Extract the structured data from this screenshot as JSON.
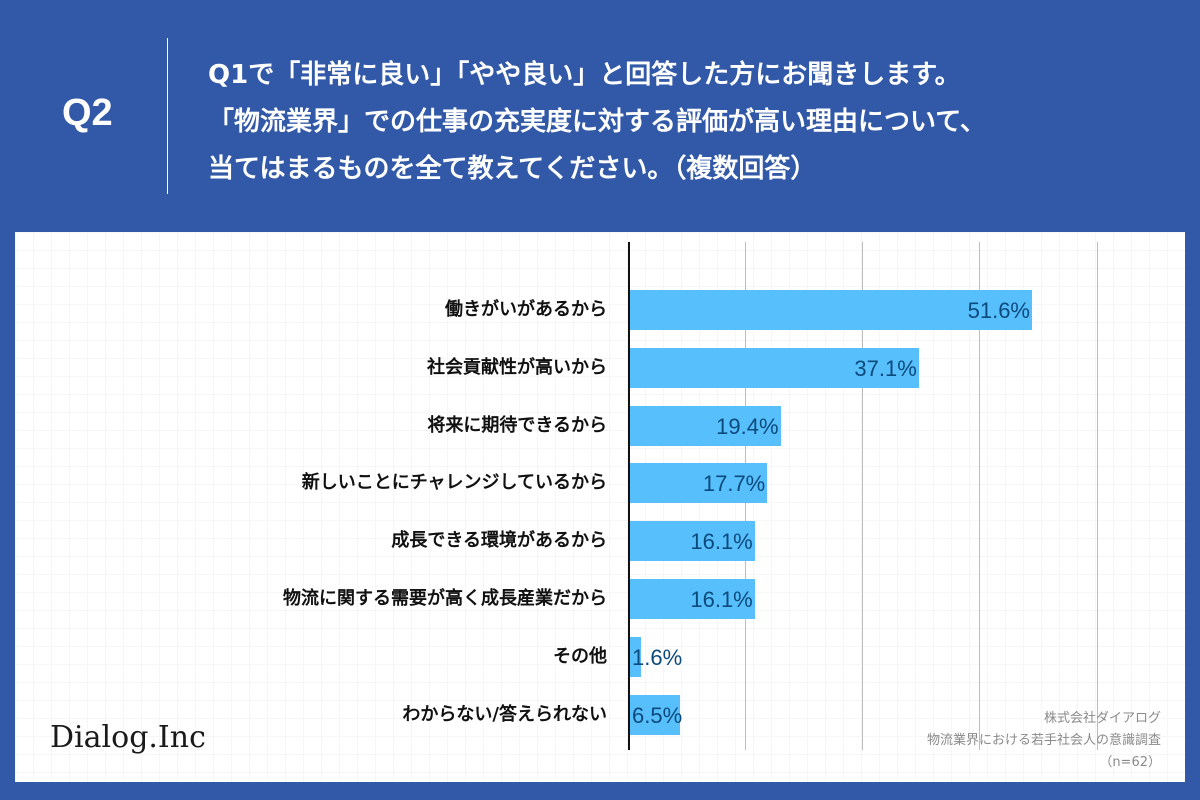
{
  "header": {
    "question_label": "Q2",
    "question_lines": [
      "Q1で「非常に良い」「やや良い」と回答した方にお聞きします。",
      "「物流業界」での仕事の充実度に対する評価が高い理由について、",
      "当てはまるものを全て教えてください。（複数回答）"
    ]
  },
  "colors": {
    "background": "#3258a8",
    "bar": "#56bffc",
    "value_text": "#0d4a7c",
    "panel": "#ffffff"
  },
  "footer": {
    "logo": "Dialog.Inc",
    "source_lines": [
      "株式会社ダイアログ",
      "物流業界における若手社会人の意識調査",
      "（n=62）"
    ]
  },
  "chart_data": {
    "type": "bar",
    "orientation": "horizontal",
    "title": "Q1で「非常に良い」「やや良い」と回答した方にお聞きします。「物流業界」での仕事の充実度に対する評価が高い理由について、当てはまるものを全て教えてください。（複数回答）",
    "categories": [
      "働きがいがあるから",
      "社会貢献性が高いから",
      "将来に期待できるから",
      "新しいことにチャレンジしているから",
      "成長できる環境があるから",
      "物流に関する需要が高く成長産業だから",
      "その他",
      "わからない/答えられない"
    ],
    "values": [
      51.6,
      37.1,
      19.4,
      17.7,
      16.1,
      16.1,
      1.6,
      6.5
    ],
    "value_labels": [
      "51.6%",
      "37.1%",
      "19.4%",
      "17.7%",
      "16.1%",
      "16.1%",
      "1.6%",
      "6.5%"
    ],
    "unit": "%",
    "xlabel": "",
    "ylabel": "",
    "xlim": [
      0,
      60
    ],
    "gridlines": [
      15,
      30,
      45,
      60
    ],
    "grid": true,
    "legend": null,
    "sample_size": "n=62"
  }
}
